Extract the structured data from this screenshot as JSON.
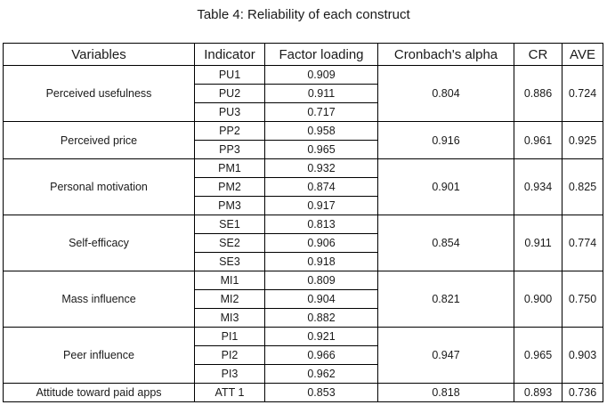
{
  "caption": "Table 4: Reliability of each construct",
  "headers": [
    "Variables",
    "Indicator",
    "Factor loading",
    "Cronbach's alpha",
    "CR",
    "AVE"
  ],
  "groups": [
    {
      "variable": "Perceived usefulness",
      "alpha": "0.804",
      "cr": "0.886",
      "ave": "0.724",
      "rows": [
        {
          "indicator": "PU1",
          "loading": "0.909"
        },
        {
          "indicator": "PU2",
          "loading": "0.911"
        },
        {
          "indicator": "PU3",
          "loading": "0.717"
        }
      ]
    },
    {
      "variable": "Perceived price",
      "alpha": "0.916",
      "cr": "0.961",
      "ave": "0.925",
      "rows": [
        {
          "indicator": "PP2",
          "loading": "0.958"
        },
        {
          "indicator": "PP3",
          "loading": "0.965"
        }
      ]
    },
    {
      "variable": "Personal motivation",
      "alpha": "0.901",
      "cr": "0.934",
      "ave": "0.825",
      "rows": [
        {
          "indicator": "PM1",
          "loading": "0.932"
        },
        {
          "indicator": "PM2",
          "loading": "0.874"
        },
        {
          "indicator": "PM3",
          "loading": "0.917"
        }
      ]
    },
    {
      "variable": "Self-efficacy",
      "alpha": "0.854",
      "cr": "0.911",
      "ave": "0.774",
      "rows": [
        {
          "indicator": "SE1",
          "loading": "0.813"
        },
        {
          "indicator": "SE2",
          "loading": "0.906"
        },
        {
          "indicator": "SE3",
          "loading": "0.918"
        }
      ]
    },
    {
      "variable": "Mass influence",
      "alpha": "0.821",
      "cr": "0.900",
      "ave": "0.750",
      "rows": [
        {
          "indicator": "MI1",
          "loading": "0.809"
        },
        {
          "indicator": "MI2",
          "loading": "0.904"
        },
        {
          "indicator": "MI3",
          "loading": "0.882"
        }
      ]
    },
    {
      "variable": "Peer influence",
      "alpha": "0.947",
      "cr": "0.965",
      "ave": "0.903",
      "rows": [
        {
          "indicator": "PI1",
          "loading": "0.921"
        },
        {
          "indicator": "PI2",
          "loading": "0.966"
        },
        {
          "indicator": "PI3",
          "loading": "0.962"
        }
      ]
    },
    {
      "variable": "Attitude toward paid apps",
      "alpha": "0.818",
      "cr": "0.893",
      "ave": "0.736",
      "rows": [
        {
          "indicator": "ATT 1",
          "loading": "0.853"
        }
      ]
    }
  ]
}
